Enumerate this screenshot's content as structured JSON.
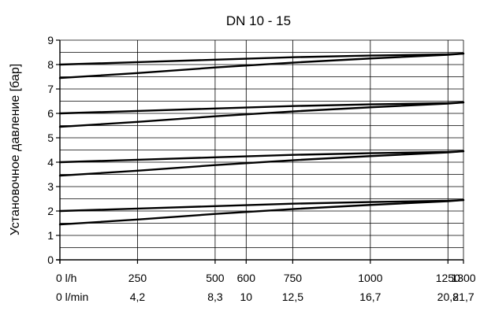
{
  "chart_data": {
    "type": "line",
    "title": "DN 10 - 15",
    "ylabel": "Установочное давление [бар]",
    "xlabel": "",
    "ylim": [
      0,
      9
    ],
    "xlim": [
      0,
      1300
    ],
    "grid": true,
    "y_ticks": [
      "0",
      "1",
      "2",
      "3",
      "4",
      "5",
      "6",
      "7",
      "8",
      "9"
    ],
    "x_ticks": [
      {
        "value": 0,
        "label_lh": "0 l/h",
        "label_lmin": "0 l/min"
      },
      {
        "value": 250,
        "label_lh": "250",
        "label_lmin": "4,2"
      },
      {
        "value": 500,
        "label_lh": "500",
        "label_lmin": "8,3"
      },
      {
        "value": 600,
        "label_lh": "600",
        "label_lmin": "10"
      },
      {
        "value": 750,
        "label_lh": "750",
        "label_lmin": "12,5"
      },
      {
        "value": 1000,
        "label_lh": "1000",
        "label_lmin": "16,7"
      },
      {
        "value": 1250,
        "label_lh": "1250",
        "label_lmin": "20,8"
      },
      {
        "value": 1300,
        "label_lh": "1300",
        "label_lmin": "21,7"
      }
    ],
    "series": [
      {
        "x": [
          0,
          250,
          500,
          750,
          1000,
          1250,
          1300
        ],
        "y": [
          8.0,
          8.1,
          8.2,
          8.3,
          8.37,
          8.42,
          8.45
        ]
      },
      {
        "x": [
          0,
          250,
          500,
          750,
          1000,
          1250,
          1300
        ],
        "y": [
          7.45,
          7.65,
          7.88,
          8.08,
          8.25,
          8.4,
          8.45
        ]
      },
      {
        "x": [
          0,
          250,
          500,
          750,
          1000,
          1250,
          1300
        ],
        "y": [
          6.0,
          6.1,
          6.2,
          6.3,
          6.37,
          6.42,
          6.45
        ]
      },
      {
        "x": [
          0,
          250,
          500,
          750,
          1000,
          1250,
          1300
        ],
        "y": [
          5.45,
          5.65,
          5.88,
          6.08,
          6.25,
          6.4,
          6.45
        ]
      },
      {
        "x": [
          0,
          250,
          500,
          750,
          1000,
          1250,
          1300
        ],
        "y": [
          4.0,
          4.1,
          4.2,
          4.3,
          4.37,
          4.42,
          4.45
        ]
      },
      {
        "x": [
          0,
          250,
          500,
          750,
          1000,
          1250,
          1300
        ],
        "y": [
          3.45,
          3.65,
          3.88,
          4.08,
          4.25,
          4.4,
          4.45
        ]
      },
      {
        "x": [
          0,
          250,
          500,
          750,
          1000,
          1250,
          1300
        ],
        "y": [
          2.0,
          2.1,
          2.2,
          2.3,
          2.37,
          2.42,
          2.45
        ]
      },
      {
        "x": [
          0,
          250,
          500,
          750,
          1000,
          1250,
          1300
        ],
        "y": [
          1.45,
          1.65,
          1.88,
          2.08,
          2.25,
          2.4,
          2.45
        ]
      }
    ]
  }
}
